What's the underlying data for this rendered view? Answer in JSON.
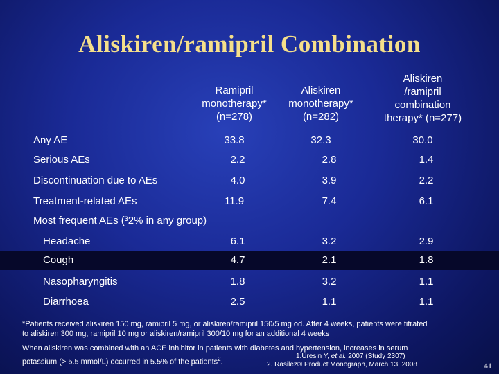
{
  "title": "Aliskiren/ramipril Combination",
  "columns": [
    {
      "line1": "",
      "line2": "Ramipril",
      "line3": "monotherapy*",
      "line4": "(n=278)"
    },
    {
      "line1": "",
      "line2": "Aliskiren",
      "line3": "monotherapy*",
      "line4": "(n=282)"
    },
    {
      "line1": "Aliskiren",
      "line2": "/ramipril",
      "line3": "combination",
      "line4": "therapy* (n=277)"
    }
  ],
  "rows": [
    {
      "label": "Any AE",
      "values": [
        "33.8",
        "32.3",
        "30.0"
      ]
    },
    {
      "label": "Serious AEs",
      "values": [
        "2.2",
        "2.8",
        "1.4"
      ]
    },
    {
      "label": "Discontinuation due to AEs",
      "values": [
        "4.0",
        "3.9",
        "2.2"
      ]
    },
    {
      "label": "Treatment-related AEs",
      "values": [
        "11.9",
        "7.4",
        "6.1"
      ]
    }
  ],
  "section_label": "Most frequent AEs (³2% in any group)",
  "sub_rows": [
    {
      "label": "Headache",
      "values": [
        "6.1",
        "3.2",
        "2.9"
      ]
    },
    {
      "label": "Cough",
      "values": [
        "4.7",
        "2.1",
        "1.8"
      ]
    },
    {
      "label": "Nasopharyngitis",
      "values": [
        "1.8",
        "3.2",
        "1.1"
      ]
    },
    {
      "label": "Diarrhoea",
      "values": [
        "2.5",
        "1.1",
        "1.1"
      ]
    }
  ],
  "footnote1_line1": "*Patients received aliskiren 150 mg, ramipril 5 mg, or aliskiren/ramipril 150/5 mg od. After 4 weeks, patients were titrated",
  "footnote1_line2": "to aliskiren 300 mg, ramipril 10 mg or aliskiren/ramipril 300/10 mg for an additional 4 weeks",
  "footnote2_line1": "When aliskiren was combined with an ACE inhibitor in patients with diabetes and hypertension, increases in serum",
  "footnote2_line2": "potassium (> 5.5 mmol/L) occurred in 5.5% of the patients",
  "footnote2_sup": "2",
  "ref1_prefix": "1.Uresin Y, ",
  "ref1_italic": "et al.",
  "ref1_suffix": " 2007 (Study 2307)",
  "ref2": "2. Rasilez® Product Monograph, March 13, 2008",
  "page_number": "41"
}
